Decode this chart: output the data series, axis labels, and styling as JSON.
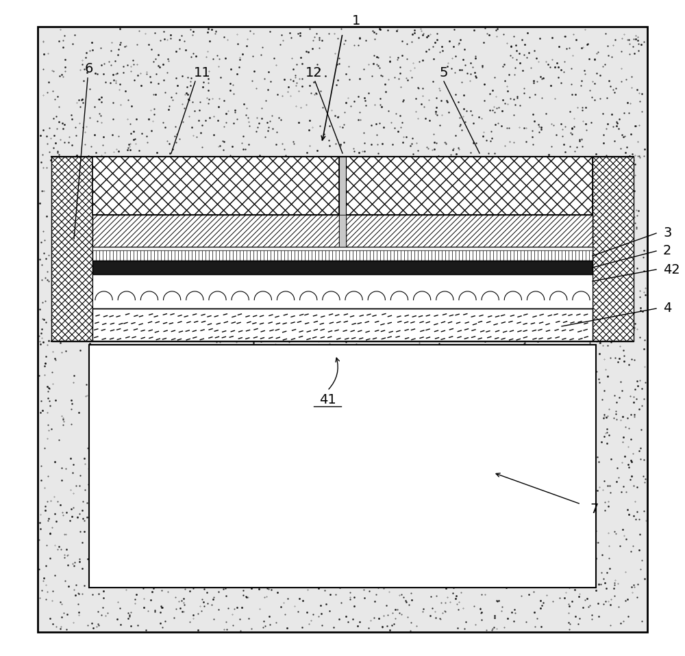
{
  "fig_width": 10.0,
  "fig_height": 9.59,
  "bg_color": "#ffffff",
  "concrete_color": "#e8e8e8",
  "dark_layer_color": "#1a1a1a",
  "fs": 14,
  "lw_ann": 1.0
}
